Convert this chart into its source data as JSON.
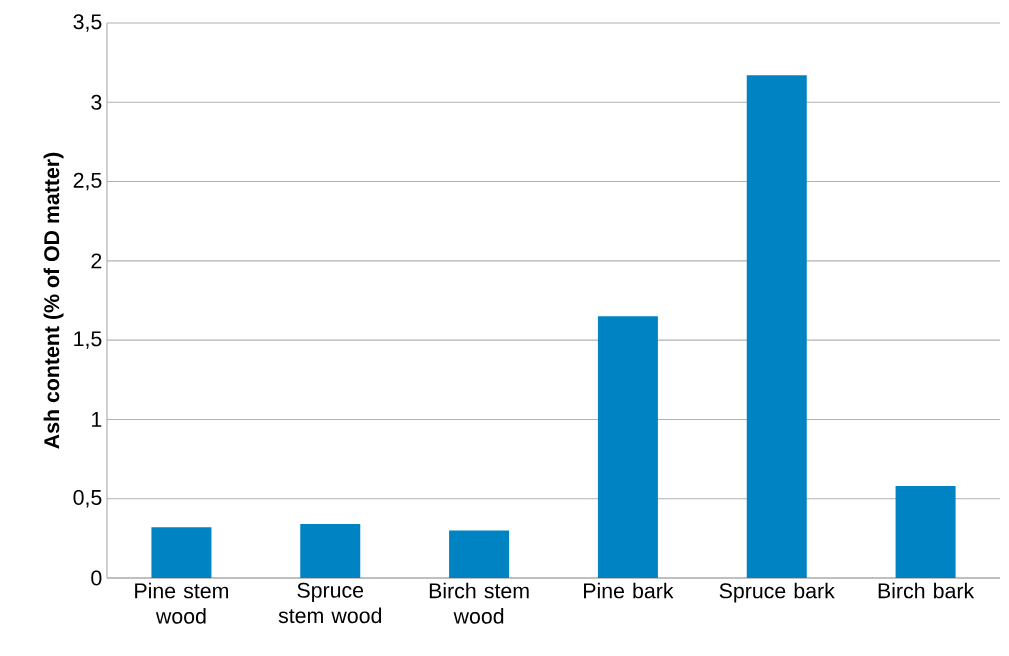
{
  "chart_data": {
    "type": "bar",
    "ylabel": "Ash content (% of OD matter)",
    "categories": [
      "Pine stem wood",
      "Spruce stem wood",
      "Birch stem wood",
      "Pine bark",
      "Spruce bark",
      "Birch bark"
    ],
    "values": [
      0.32,
      0.34,
      0.3,
      1.65,
      3.17,
      0.58
    ],
    "color": "#0083c3",
    "ylim": [
      0,
      3.5
    ],
    "yticks": [
      0,
      {
        "value": 0.5,
        "label": "0,5"
      },
      1,
      {
        "value": 1.5,
        "label": "1,5"
      },
      2,
      {
        "value": 2.5,
        "label": "2,5"
      },
      3,
      {
        "value": 3.5,
        "label": "3,5"
      }
    ],
    "grid": "y"
  }
}
